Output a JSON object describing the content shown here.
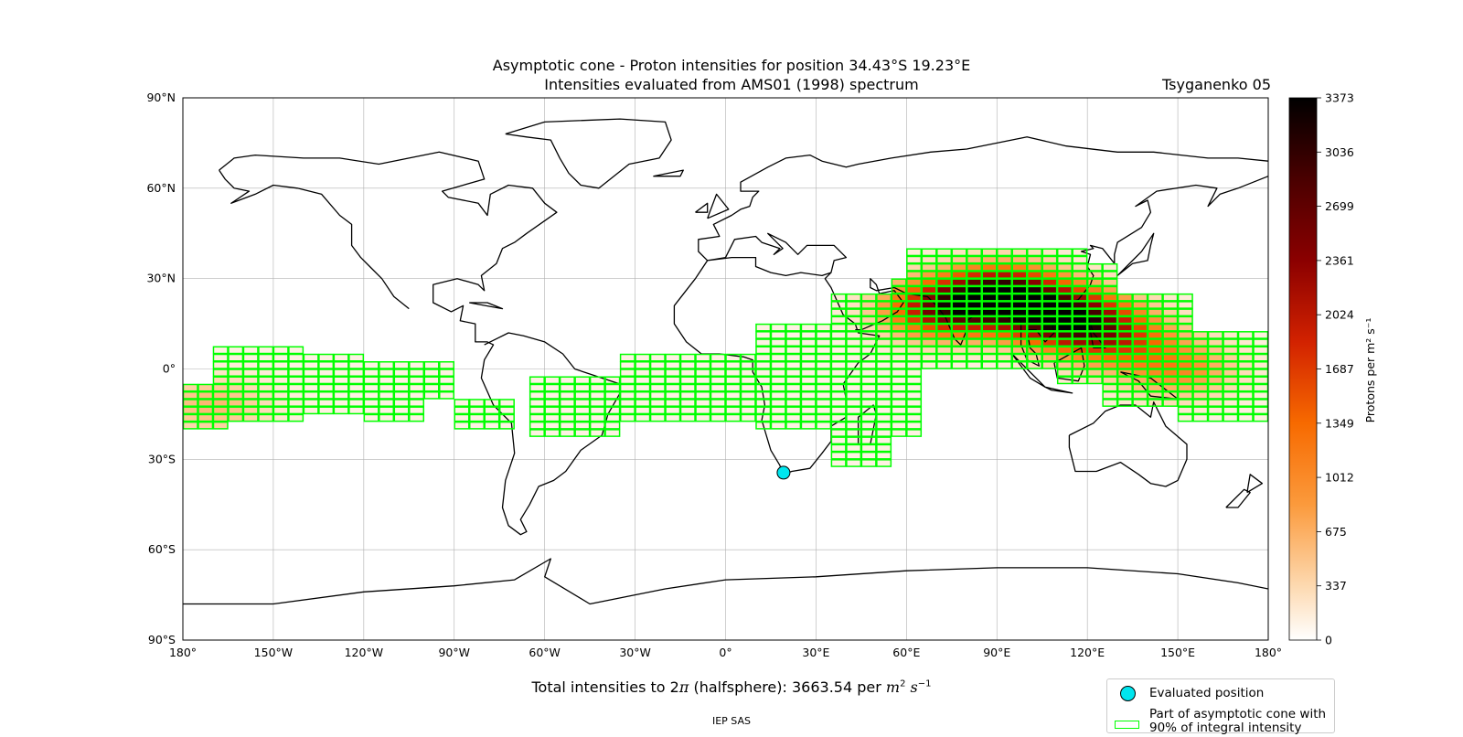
{
  "title_line1": "Asymptotic cone - Proton intensities for position 34.43°S 19.23°E",
  "title_line2": "Intensities evaluated from AMS01 (1998) spectrum",
  "model": "Tsyganenko 05",
  "footer": "IEP SAS",
  "total": {
    "prefix": "Total intensities to 2",
    "pi": "π",
    "mid": " (halfsphere): 3663.54 per ",
    "m": "m",
    "m_exp": "2",
    "s": "s",
    "s_exp": "−1"
  },
  "colors": {
    "frame": "#000000",
    "grid": "#b0b0b0",
    "cone_outline": "#00ff00",
    "evaluated_marker": "#00e5ee"
  },
  "colorbar": {
    "label": "Protons per m² s⁻¹",
    "ticks": [
      "0",
      "337",
      "675",
      "1012",
      "1349",
      "1687",
      "2024",
      "2361",
      "2699",
      "3036",
      "3373"
    ],
    "min": 0,
    "max": 3373,
    "colormap": "gist_heat_r"
  },
  "legend": {
    "evaluated": "Evaluated position",
    "cone_line1": "Part of asymptotic cone with",
    "cone_line2": "90% of integral intensity"
  },
  "map": {
    "projection": "plate-carree",
    "lon_range": [
      -180,
      180
    ],
    "lat_range": [
      -90,
      90
    ],
    "grid": true,
    "lat_ticks": [
      {
        "v": 90,
        "label": "90°N"
      },
      {
        "v": 60,
        "label": "60°N"
      },
      {
        "v": 30,
        "label": "30°N"
      },
      {
        "v": 0,
        "label": "0°"
      },
      {
        "v": -30,
        "label": "30°S"
      },
      {
        "v": -60,
        "label": "60°S"
      },
      {
        "v": -90,
        "label": "90°S"
      }
    ],
    "lon_ticks": [
      {
        "v": -180,
        "label": "180°"
      },
      {
        "v": -150,
        "label": "150°W"
      },
      {
        "v": -120,
        "label": "120°W"
      },
      {
        "v": -90,
        "label": "90°W"
      },
      {
        "v": -60,
        "label": "60°W"
      },
      {
        "v": -30,
        "label": "30°W"
      },
      {
        "v": 0,
        "label": "0°"
      },
      {
        "v": 30,
        "label": "30°E"
      },
      {
        "v": 60,
        "label": "60°E"
      },
      {
        "v": 90,
        "label": "90°E"
      },
      {
        "v": 120,
        "label": "120°E"
      },
      {
        "v": 150,
        "label": "150°E"
      },
      {
        "v": 180,
        "label": "180°"
      }
    ],
    "evaluated_position": {
      "lat": -34.43,
      "lon": 19.23
    }
  },
  "chart_data": {
    "type": "heatmap",
    "title": "Asymptotic cone - Proton intensities for position 34.43°S 19.23°E",
    "subtitle": "Intensities evaluated from AMS01 (1998) spectrum",
    "xlim": [
      -180,
      180
    ],
    "ylim": [
      -90,
      90
    ],
    "value_range": [
      0,
      3373
    ],
    "cell_size_deg": [
      5,
      2.5
    ],
    "cone_regions": [
      {
        "lon": [
          -180,
          -165
        ],
        "lat": [
          -20,
          -5
        ]
      },
      {
        "lon": [
          -170,
          -140
        ],
        "lat": [
          -17.5,
          7.5
        ]
      },
      {
        "lon": [
          -140,
          -120
        ],
        "lat": [
          -15,
          5
        ]
      },
      {
        "lon": [
          -120,
          -100
        ],
        "lat": [
          -17.5,
          2.5
        ]
      },
      {
        "lon": [
          -100,
          -90
        ],
        "lat": [
          -10,
          2.5
        ]
      },
      {
        "lon": [
          -90,
          -70
        ],
        "lat": [
          -20,
          -10
        ]
      },
      {
        "lon": [
          -65,
          -35
        ],
        "lat": [
          -22.5,
          -2.5
        ]
      },
      {
        "lon": [
          -35,
          10
        ],
        "lat": [
          -17.5,
          5
        ]
      },
      {
        "lon": [
          10,
          40
        ],
        "lat": [
          -20,
          15
        ]
      },
      {
        "lon": [
          35,
          55
        ],
        "lat": [
          -32.5,
          25
        ]
      },
      {
        "lon": [
          55,
          65
        ],
        "lat": [
          -22.5,
          30
        ]
      },
      {
        "lon": [
          60,
          120
        ],
        "lat": [
          0,
          40
        ]
      },
      {
        "lon": [
          110,
          130
        ],
        "lat": [
          -5,
          35
        ]
      },
      {
        "lon": [
          125,
          155
        ],
        "lat": [
          -12.5,
          25
        ]
      },
      {
        "lon": [
          150,
          180
        ],
        "lat": [
          -17.5,
          12.5
        ]
      }
    ],
    "intensity_hotspots": [
      {
        "lon": 92,
        "lat": 24,
        "peak": 3373
      },
      {
        "lon": 113,
        "lat": 17,
        "peak": 3000
      },
      {
        "lon": 72,
        "lat": 20,
        "peak": 2200
      },
      {
        "lon": 130,
        "lat": 10,
        "peak": 1400
      },
      {
        "lon": 150,
        "lat": 0,
        "peak": 900
      },
      {
        "lon": -170,
        "lat": -12,
        "peak": 500
      }
    ]
  }
}
